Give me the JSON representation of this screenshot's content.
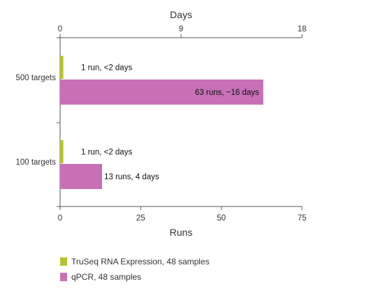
{
  "chart_data": {
    "type": "bar",
    "orientation": "horizontal",
    "categories": [
      "500 targets",
      "100 targets"
    ],
    "x_axis_bottom": {
      "label": "Runs",
      "min": 0,
      "max": 75,
      "ticks": [
        0,
        25,
        50,
        75
      ]
    },
    "x_axis_top": {
      "label": "Days",
      "min": 0,
      "max": 18,
      "ticks": [
        0,
        9,
        18
      ]
    },
    "series": [
      {
        "name": "TruSeq RNA Expression, 48 samples",
        "color": "#b5c334",
        "values": [
          1,
          1
        ],
        "labels": [
          "1 run, <2 days",
          "1 run, <2 days"
        ]
      },
      {
        "name": "qPCR, 48 samples",
        "color": "#c770b6",
        "values": [
          63,
          13
        ],
        "labels": [
          "63 runs, ~16 days",
          "13 runs, 4 days"
        ]
      }
    ],
    "legend_position": "bottom-left",
    "grid": false
  }
}
